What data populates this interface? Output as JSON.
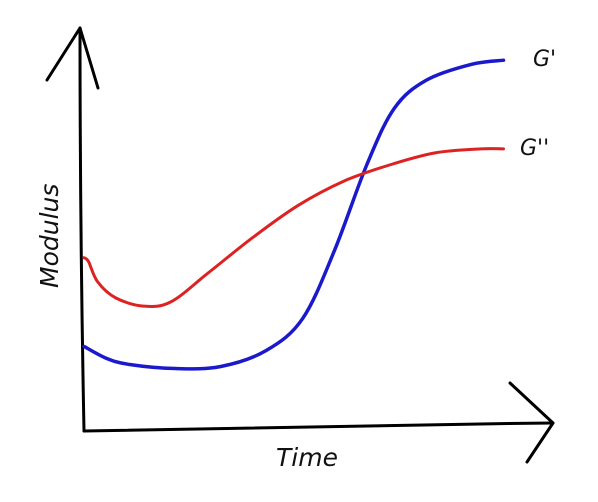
{
  "chart_data": {
    "type": "line",
    "title": "",
    "xlabel": "Time",
    "ylabel": "Modulus",
    "grid": false,
    "legend": "inline-right",
    "series": [
      {
        "name": "G'",
        "color": "#1a1acc",
        "points": [
          [
            0.0,
            0.21
          ],
          [
            0.05,
            0.18
          ],
          [
            0.1,
            0.165
          ],
          [
            0.2,
            0.155
          ],
          [
            0.3,
            0.16
          ],
          [
            0.4,
            0.2
          ],
          [
            0.48,
            0.28
          ],
          [
            0.55,
            0.45
          ],
          [
            0.62,
            0.66
          ],
          [
            0.68,
            0.8
          ],
          [
            0.75,
            0.87
          ],
          [
            0.85,
            0.91
          ],
          [
            0.92,
            0.92
          ]
        ]
      },
      {
        "name": "G''",
        "color": "#dd2222",
        "points": [
          [
            0.0,
            0.43
          ],
          [
            0.01,
            0.42
          ],
          [
            0.03,
            0.37
          ],
          [
            0.07,
            0.33
          ],
          [
            0.13,
            0.31
          ],
          [
            0.19,
            0.32
          ],
          [
            0.27,
            0.39
          ],
          [
            0.37,
            0.48
          ],
          [
            0.47,
            0.56
          ],
          [
            0.57,
            0.62
          ],
          [
            0.67,
            0.66
          ],
          [
            0.77,
            0.69
          ],
          [
            0.87,
            0.7
          ],
          [
            0.92,
            0.7
          ]
        ]
      }
    ]
  }
}
